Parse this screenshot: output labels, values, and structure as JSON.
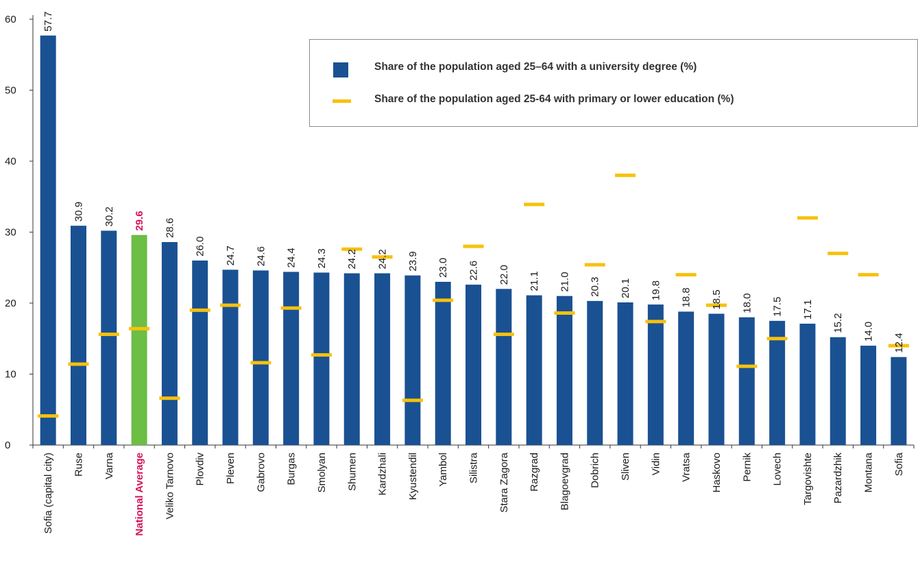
{
  "colors": {
    "bar": "#1a5192",
    "highlight_bar": "#6cbe45",
    "marker": "#f7c10e",
    "highlight_text": "#d4145a",
    "axis": "#333333"
  },
  "legend": {
    "items": [
      {
        "label": "Share of the population aged 25–64 with a university degree (%)",
        "kind": "bar"
      },
      {
        "label": "Share of the population aged 25-64 with primary or lower education (%)",
        "kind": "marker"
      }
    ]
  },
  "chart_data": {
    "type": "bar",
    "title": "",
    "xlabel": "",
    "ylabel": "",
    "ylim": [
      0,
      60
    ],
    "yticks": [
      "0",
      "10",
      "20",
      "30",
      "40",
      "50",
      "60"
    ],
    "highlight_category": "National Average",
    "categories": [
      "Sofia (capital city)",
      "Ruse",
      "Varna",
      "National Average",
      "Veliko Tarnovo",
      "Plovdiv",
      "Pleven",
      "Gabrovo",
      "Burgas",
      "Smolyan",
      "Shumen",
      "Kardzhali",
      "Kyustendil",
      "Yambol",
      "Silistra",
      "Stara Zagora",
      "Razgrad",
      "Blagoevgrad",
      "Dobrich",
      "Sliven",
      "Vidin",
      "Vratsa",
      "Haskovo",
      "Pernik",
      "Lovech",
      "Targovishte",
      "Pazardzhik",
      "Montana",
      "Sofia"
    ],
    "series": [
      {
        "name": "Share of the population aged 25–64 with a university degree (%)",
        "type": "bar",
        "values": [
          57.7,
          30.9,
          30.2,
          29.6,
          28.6,
          26.0,
          24.7,
          24.6,
          24.4,
          24.3,
          24.2,
          24.2,
          23.9,
          23.0,
          22.6,
          22.0,
          21.1,
          21.0,
          20.3,
          20.1,
          19.8,
          18.8,
          18.5,
          18.0,
          17.5,
          17.1,
          15.2,
          14.0,
          12.4
        ],
        "labels": [
          "57.7",
          "30.9",
          "30.2",
          "29.6",
          "28.6",
          "26.0",
          "24.7",
          "24.6",
          "24.4",
          "24.3",
          "24.2",
          "24.2",
          "23.9",
          "23.0",
          "22.6",
          "22.0",
          "21.1",
          "21.0",
          "20.3",
          "20.1",
          "19.8",
          "18.8",
          "18.5",
          "18.0",
          "17.5",
          "17.1",
          "15.2",
          "14.0",
          "12.4"
        ]
      },
      {
        "name": "Share of the population aged 25-64 with primary or lower education (%)",
        "type": "marker",
        "values": [
          4.1,
          11.4,
          15.6,
          16.4,
          6.6,
          19.0,
          19.7,
          11.6,
          19.3,
          12.7,
          27.6,
          26.5,
          6.3,
          20.4,
          28.0,
          15.6,
          33.9,
          18.6,
          25.4,
          38.0,
          17.4,
          24.0,
          19.7,
          11.1,
          15.0,
          32.0,
          27.0,
          24.0,
          14.0
        ]
      }
    ],
    "legend_position": "top-right",
    "grid": false
  }
}
